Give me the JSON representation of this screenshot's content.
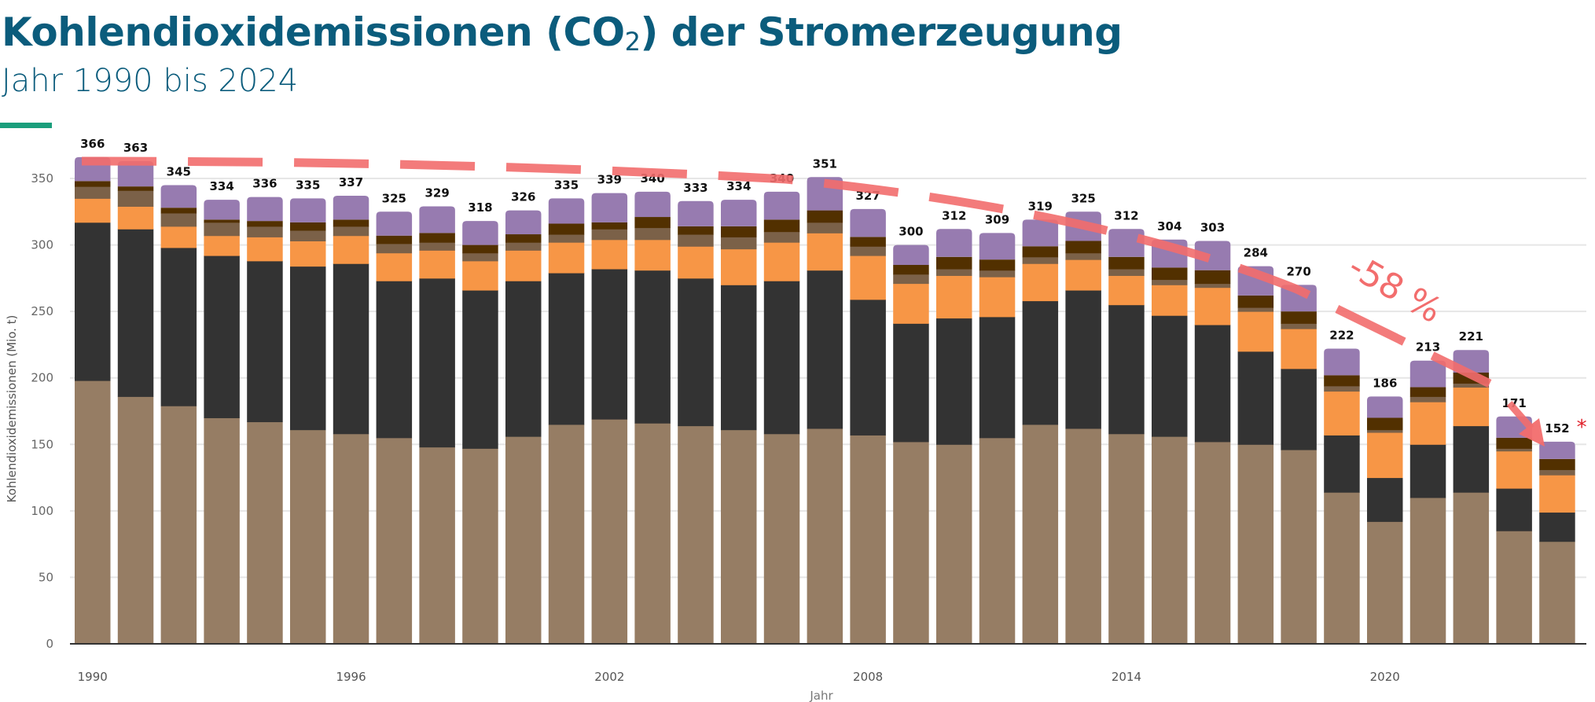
{
  "header": {
    "title_main": "Kohlendioxidemissionen (CO",
    "title_sub": "2",
    "title_end": ") der Stromerzeugung",
    "subtitle": "Jahr 1990 bis 2024",
    "accent_color": "#1a9e7c"
  },
  "chart_data": {
    "type": "bar",
    "stacked": true,
    "xlabel": "Jahr",
    "ylabel": "Kohlendioxidemissionen (Mio. t)",
    "ylim": [
      0,
      350
    ],
    "yticks": [
      0,
      50,
      100,
      150,
      200,
      250,
      300,
      350
    ],
    "grid": true,
    "xtick_labels": [
      "1990",
      "1996",
      "2002",
      "2008",
      "2014",
      "2020"
    ],
    "categories": [
      "1990",
      "1991",
      "1992",
      "1993",
      "1994",
      "1995",
      "1996",
      "1997",
      "1998",
      "1999",
      "2000",
      "2001",
      "2002",
      "2003",
      "2004",
      "2005",
      "2006",
      "2007",
      "2008",
      "2009",
      "2010",
      "2011",
      "2012",
      "2013",
      "2014",
      "2015",
      "2016",
      "2017",
      "2018",
      "2019",
      "2020",
      "2021",
      "2022",
      "2023",
      "2024"
    ],
    "totals": [
      366,
      363,
      345,
      334,
      336,
      335,
      337,
      325,
      329,
      318,
      326,
      335,
      339,
      340,
      333,
      334,
      340,
      351,
      327,
      300,
      312,
      309,
      319,
      325,
      312,
      304,
      303,
      284,
      270,
      222,
      186,
      213,
      221,
      171,
      152
    ],
    "total_label_suffix_last": "*",
    "series": [
      {
        "color": "#967d64",
        "values": [
          198,
          186,
          179,
          170,
          167,
          161,
          158,
          155,
          148,
          147,
          156,
          165,
          169,
          166,
          164,
          161,
          158,
          162,
          157,
          152,
          150,
          155,
          165,
          162,
          158,
          156,
          152,
          150,
          146,
          114,
          92,
          110,
          114,
          85,
          77
        ]
      },
      {
        "color": "#333333",
        "values": [
          119,
          126,
          119,
          122,
          121,
          123,
          128,
          118,
          127,
          119,
          117,
          114,
          113,
          115,
          111,
          109,
          115,
          119,
          102,
          89,
          95,
          91,
          93,
          104,
          97,
          91,
          88,
          70,
          61,
          43,
          33,
          40,
          50,
          32,
          22
        ]
      },
      {
        "color": "#f79646",
        "values": [
          18,
          17,
          16,
          15,
          18,
          19,
          21,
          21,
          21,
          22,
          23,
          23,
          22,
          23,
          24,
          27,
          29,
          28,
          33,
          30,
          32,
          30,
          28,
          23,
          22,
          23,
          28,
          30,
          30,
          33,
          34,
          32,
          29,
          28,
          28
        ]
      },
      {
        "color": "#7b6148",
        "values": [
          9,
          12,
          10,
          10,
          8,
          8,
          7,
          7,
          6,
          6,
          6,
          6,
          8,
          9,
          9,
          9,
          8,
          8,
          7,
          7,
          5,
          5,
          5,
          5,
          5,
          4,
          3,
          3,
          4,
          4,
          2,
          4,
          3,
          2,
          4
        ]
      },
      {
        "color": "#523000",
        "values": [
          4,
          3,
          4,
          2,
          4,
          6,
          5,
          6,
          7,
          6,
          6,
          8,
          5,
          8,
          6,
          8,
          9,
          9,
          7,
          7,
          9,
          8,
          8,
          9,
          9,
          9,
          10,
          9,
          9,
          8,
          9,
          7,
          8,
          8,
          8
        ]
      },
      {
        "color": "#977bb0",
        "values": [
          18,
          19,
          17,
          15,
          18,
          18,
          18,
          18,
          20,
          18,
          18,
          19,
          22,
          19,
          19,
          20,
          21,
          25,
          21,
          15,
          21,
          20,
          20,
          22,
          21,
          21,
          22,
          22,
          20,
          20,
          16,
          20,
          17,
          16,
          13
        ]
      }
    ],
    "annotations": {
      "change_label": "-58 %",
      "asterisk": "*",
      "annotation_color": "#f26d6d"
    }
  }
}
